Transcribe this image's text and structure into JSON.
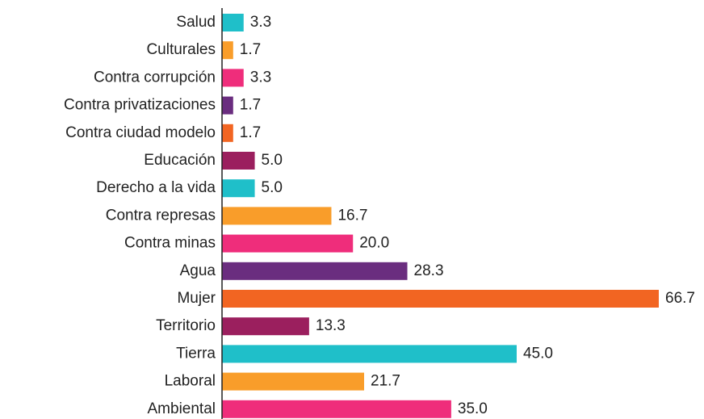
{
  "chart_data": {
    "type": "bar",
    "orientation": "horizontal",
    "categories": [
      "Salud",
      "Culturales",
      "Contra corrupción",
      "Contra privatizaciones",
      "Contra ciudad modelo",
      "Educación",
      "Derecho a la vida",
      "Contra represas",
      "Contra minas",
      "Agua",
      "Mujer",
      "Territorio",
      "Tierra",
      "Laboral",
      "Ambiental"
    ],
    "values": [
      3.3,
      1.7,
      3.3,
      1.7,
      1.7,
      5.0,
      5.0,
      16.7,
      20.0,
      28.3,
      66.7,
      13.3,
      45.0,
      21.7,
      35.0
    ],
    "value_labels": [
      "3.3",
      "1.7",
      "3.3",
      "1.7",
      "1.7",
      "5.0",
      "5.0",
      "16.7",
      "20.0",
      "28.3",
      "66.7",
      "13.3",
      "45.0",
      "21.7",
      "35.0"
    ],
    "colors": [
      "#1fbfc9",
      "#f99d2a",
      "#ef2d7b",
      "#6a2d7f",
      "#f26522",
      "#9b1f5e",
      "#1fbfc9",
      "#f99d2a",
      "#ef2d7b",
      "#6a2d7f",
      "#f26522",
      "#9b1f5e",
      "#1fbfc9",
      "#f99d2a",
      "#ef2d7b"
    ]
  }
}
